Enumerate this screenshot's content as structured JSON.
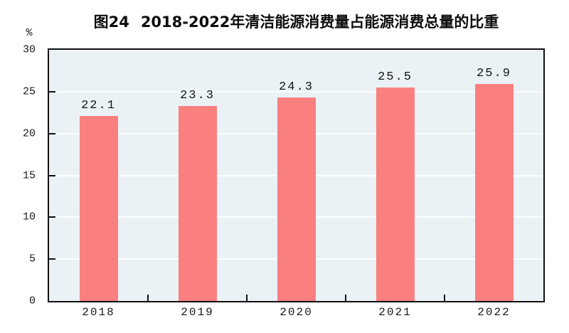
{
  "chart": {
    "title_prefix": "图24",
    "title_text": "2018-2022年清洁能源消费量占能源消费总量的比重",
    "unit_label": "%"
  },
  "chart_data": {
    "type": "bar",
    "title": "图24 2018-2022年清洁能源消费量占能源消费总量的比重",
    "categories": [
      "2018",
      "2019",
      "2020",
      "2021",
      "2022"
    ],
    "values": [
      22.1,
      23.3,
      24.3,
      25.5,
      25.9
    ],
    "data_labels": [
      "22.1",
      "23.3",
      "24.3",
      "25.5",
      "25.9"
    ],
    "xlabel": "",
    "ylabel": "%",
    "ylim": [
      0,
      30
    ],
    "yticks": [
      0,
      5,
      10,
      15,
      20,
      25,
      30
    ],
    "grid": true,
    "legend": "none",
    "colors": {
      "bar": "#fa7f7f",
      "plot_background": "#eaf2f6",
      "gridline": "#ffffff",
      "axis": "#111111",
      "text": "#1a1a1a"
    }
  }
}
